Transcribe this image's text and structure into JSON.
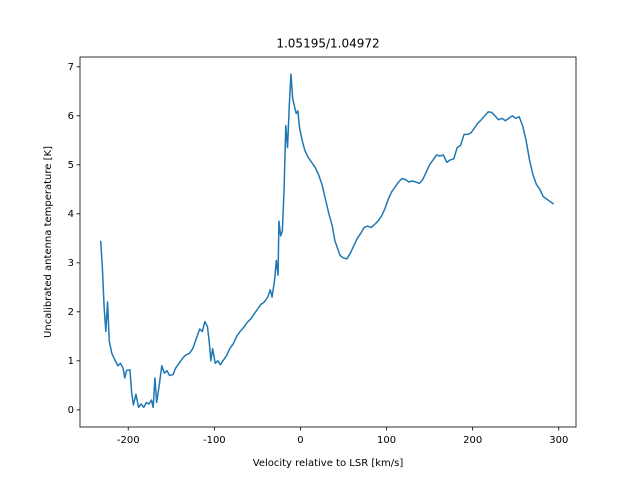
{
  "chart_data": {
    "type": "line",
    "title": "1.05195/1.04972",
    "xlabel": "Velocity relative to LSR [km/s]",
    "ylabel": "Uncalibrated antenna temperature [K]",
    "xlim": [
      -256,
      320
    ],
    "ylim": [
      -0.35,
      7.2
    ],
    "xticks": [
      -200,
      -100,
      0,
      100,
      200,
      300
    ],
    "yticks": [
      0,
      1,
      2,
      3,
      4,
      5,
      6,
      7
    ],
    "grid": false,
    "series": [
      {
        "color": "#1f77b4",
        "x": [
          -232,
          -230,
          -228,
          -226,
          -224,
          -222,
          -219,
          -215,
          -212,
          -209,
          -206,
          -204,
          -202,
          -198,
          -196,
          -194,
          -191,
          -188,
          -185,
          -182,
          -179,
          -176,
          -173,
          -171,
          -169,
          -167,
          -164,
          -161,
          -158,
          -155,
          -152,
          -148,
          -145,
          -141,
          -137,
          -133,
          -129,
          -125,
          -121,
          -117,
          -114,
          -111,
          -108,
          -106,
          -104,
          -102,
          -99,
          -96,
          -93,
          -90,
          -86,
          -82,
          -78,
          -74,
          -70,
          -66,
          -62,
          -58,
          -54,
          -50,
          -46,
          -42,
          -38,
          -35,
          -33,
          -30,
          -28,
          -26,
          -25,
          -23,
          -21,
          -19,
          -17,
          -15,
          -13,
          -11,
          -9,
          -7,
          -5,
          -3,
          -1,
          2,
          5,
          9,
          13,
          17,
          21,
          25,
          29,
          33,
          37,
          40,
          43,
          46,
          50,
          54,
          58,
          62,
          66,
          70,
          74,
          78,
          82,
          86,
          90,
          94,
          98,
          102,
          106,
          110,
          114,
          118,
          122,
          126,
          130,
          134,
          138,
          142,
          146,
          150,
          154,
          158,
          162,
          166,
          170,
          174,
          178,
          182,
          186,
          190,
          194,
          198,
          202,
          206,
          210,
          214,
          218,
          222,
          226,
          230,
          234,
          238,
          242,
          246,
          250,
          254,
          258,
          262,
          266,
          270,
          274,
          278,
          282,
          286,
          290,
          294
        ],
        "values": [
          3.45,
          2.9,
          2.1,
          1.6,
          2.2,
          1.4,
          1.15,
          1.0,
          0.9,
          0.95,
          0.85,
          0.65,
          0.8,
          0.82,
          0.35,
          0.1,
          0.32,
          0.05,
          0.12,
          0.05,
          0.15,
          0.12,
          0.2,
          0.05,
          0.65,
          0.15,
          0.5,
          0.9,
          0.75,
          0.8,
          0.7,
          0.72,
          0.85,
          0.95,
          1.05,
          1.12,
          1.15,
          1.25,
          1.45,
          1.65,
          1.6,
          1.8,
          1.7,
          1.4,
          1.0,
          1.25,
          0.95,
          1.0,
          0.92,
          1.0,
          1.1,
          1.25,
          1.35,
          1.5,
          1.6,
          1.68,
          1.78,
          1.85,
          1.95,
          2.05,
          2.15,
          2.2,
          2.3,
          2.45,
          2.3,
          2.65,
          3.05,
          2.75,
          3.85,
          3.55,
          3.65,
          4.5,
          5.8,
          5.35,
          6.2,
          6.85,
          6.35,
          6.2,
          6.05,
          6.1,
          5.75,
          5.5,
          5.3,
          5.15,
          5.05,
          4.95,
          4.8,
          4.6,
          4.3,
          4.0,
          3.75,
          3.45,
          3.3,
          3.15,
          3.1,
          3.08,
          3.2,
          3.35,
          3.5,
          3.6,
          3.72,
          3.75,
          3.72,
          3.78,
          3.85,
          3.95,
          4.1,
          4.3,
          4.45,
          4.55,
          4.65,
          4.72,
          4.7,
          4.65,
          4.67,
          4.65,
          4.62,
          4.7,
          4.85,
          5.0,
          5.1,
          5.2,
          5.18,
          5.2,
          5.05,
          5.1,
          5.12,
          5.35,
          5.4,
          5.62,
          5.62,
          5.65,
          5.75,
          5.85,
          5.92,
          6.0,
          6.08,
          6.07,
          6.0,
          5.92,
          5.95,
          5.9,
          5.95,
          6.0,
          5.95,
          5.98,
          5.8,
          5.5,
          5.1,
          4.8,
          4.6,
          4.5,
          4.35,
          4.3,
          4.25,
          4.2
        ]
      }
    ]
  }
}
